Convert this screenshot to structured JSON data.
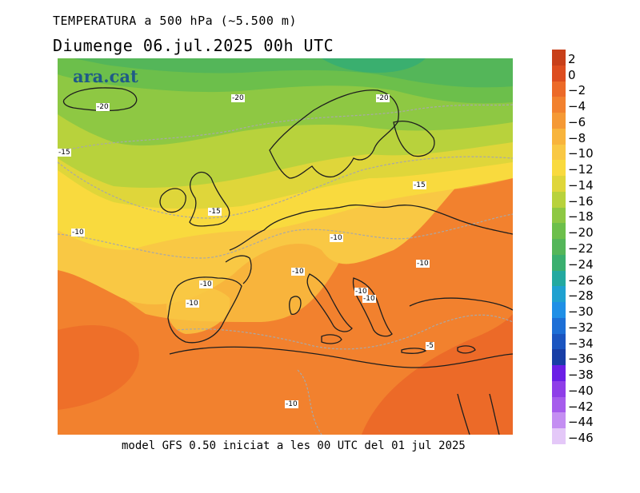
{
  "header": {
    "title": "TEMPERATURA a 500 hPa (~5.500 m)",
    "subtitle": "Diumenge  06.jul.2025  00h  UTC"
  },
  "footer": "model GFS 0.50 iniciat a les 00 UTC del 01 jul 2025",
  "logo": "ara.cat",
  "map": {
    "contour_labels": [
      "-20",
      "-20",
      "-20",
      "-15",
      "-15",
      "-15",
      "-10",
      "-10",
      "-10",
      "-10",
      "-10",
      "-10",
      "-10",
      "-10",
      "-10",
      "-5",
      "-10"
    ]
  },
  "colorbar": {
    "levels": [
      {
        "label": "2",
        "color": "#c8401a"
      },
      {
        "label": "0",
        "color": "#dd4d1f"
      },
      {
        "label": "−2",
        "color": "#ec6a28"
      },
      {
        "label": "−4",
        "color": "#f2812e"
      },
      {
        "label": "−6",
        "color": "#f59935"
      },
      {
        "label": "−8",
        "color": "#f8b43c"
      },
      {
        "label": "−10",
        "color": "#f9c844"
      },
      {
        "label": "−12",
        "color": "#f9da3e"
      },
      {
        "label": "−14",
        "color": "#dfd63a"
      },
      {
        "label": "−16",
        "color": "#b8d23c"
      },
      {
        "label": "−18",
        "color": "#8ec843"
      },
      {
        "label": "−20",
        "color": "#6cbf4b"
      },
      {
        "label": "−22",
        "color": "#54b659"
      },
      {
        "label": "−24",
        "color": "#3aaf6f"
      },
      {
        "label": "−26",
        "color": "#23a9a0"
      },
      {
        "label": "−28",
        "color": "#1fa1d0"
      },
      {
        "label": "−30",
        "color": "#1f8fe6"
      },
      {
        "label": "−32",
        "color": "#1d6fd6"
      },
      {
        "label": "−34",
        "color": "#1b55c0"
      },
      {
        "label": "−36",
        "color": "#183ea6"
      },
      {
        "label": "−38",
        "color": "#6b1ee6"
      },
      {
        "label": "−40",
        "color": "#8f3ee8"
      },
      {
        "label": "−42",
        "color": "#a65cec"
      },
      {
        "label": "−44",
        "color": "#c48ef2"
      },
      {
        "label": "−46",
        "color": "#e4c8f8"
      }
    ]
  }
}
